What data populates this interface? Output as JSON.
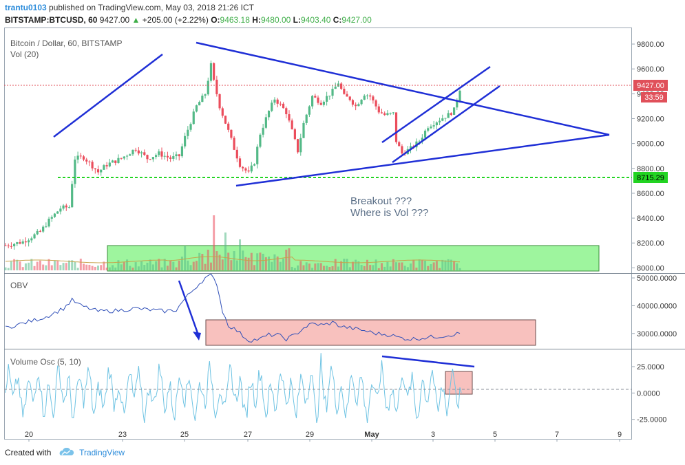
{
  "header": {
    "user": "trantu0103",
    "published": "published on TradingView.com, May 03, 2018 21:26 ICT",
    "symbol": "BITSTAMP:BTCUSD, 60",
    "price": "9427.00",
    "change": "+205.00 (+2.22%)",
    "o_label": "O:",
    "o_val": "9463.18",
    "h_label": "H:",
    "h_val": "9480.00",
    "l_label": "L:",
    "l_val": "9403.40",
    "c_label": "C:",
    "c_val": "9427.00"
  },
  "footer": {
    "created": "Created with",
    "brand": "TradingView"
  },
  "chart_data": [
    {
      "type": "candlestick",
      "title": "Bitcoin / Dollar, 60, BITSTAMP",
      "subtitle": "Vol (20)",
      "x_ticks": [
        "20",
        "23",
        "25",
        "27",
        "29",
        "May",
        "3",
        "5",
        "7",
        "9"
      ],
      "y_ticks": [
        "9800.00",
        "9600.00",
        "9400.00",
        "9200.00",
        "9000.00",
        "8800.00",
        "8600.00",
        "8400.00",
        "8200.00",
        "8000.00"
      ],
      "ylim": [
        7980,
        9850
      ],
      "last_price_label": "9427.00",
      "countdown_label": "33:59",
      "support_label": "8715.29",
      "support_level": 8715.29,
      "anchors": [
        [
          0,
          8180
        ],
        [
          6,
          8210
        ],
        [
          12,
          8290
        ],
        [
          15,
          8380
        ],
        [
          19,
          8480
        ],
        [
          22,
          8490
        ],
        [
          24,
          8880
        ],
        [
          27,
          8890
        ],
        [
          30,
          8820
        ],
        [
          32,
          8770
        ],
        [
          35,
          8830
        ],
        [
          40,
          8880
        ],
        [
          45,
          8960
        ],
        [
          49,
          8880
        ],
        [
          53,
          8920
        ],
        [
          57,
          8880
        ],
        [
          60,
          8900
        ],
        [
          62,
          9050
        ],
        [
          66,
          9300
        ],
        [
          69,
          9400
        ],
        [
          71,
          9630
        ],
        [
          72,
          9500
        ],
        [
          74,
          9300
        ],
        [
          77,
          9100
        ],
        [
          79,
          8960
        ],
        [
          81,
          8830
        ],
        [
          84,
          8760
        ],
        [
          86,
          8850
        ],
        [
          88,
          9080
        ],
        [
          91,
          9260
        ],
        [
          93,
          9360
        ],
        [
          95,
          9310
        ],
        [
          97,
          9250
        ],
        [
          99,
          9100
        ],
        [
          101,
          8940
        ],
        [
          103,
          9160
        ],
        [
          106,
          9380
        ],
        [
          109,
          9330
        ],
        [
          113,
          9420
        ],
        [
          115,
          9490
        ],
        [
          117,
          9380
        ],
        [
          119,
          9360
        ],
        [
          121,
          9300
        ],
        [
          124,
          9400
        ],
        [
          126,
          9380
        ],
        [
          129,
          9260
        ],
        [
          131,
          9230
        ],
        [
          134,
          9240
        ],
        [
          135,
          9020
        ],
        [
          137,
          8920
        ],
        [
          140,
          8960
        ],
        [
          143,
          9020
        ],
        [
          146,
          9140
        ],
        [
          149,
          9180
        ],
        [
          152,
          9220
        ],
        [
          153,
          9230
        ],
        [
          155,
          9270
        ],
        [
          157,
          9440
        ]
      ],
      "annotations": [
        "Breakout ???",
        "Where is Vol ???"
      ]
    },
    {
      "type": "line",
      "title": "OBV",
      "y_ticks": [
        "50000.0000",
        "40000.0000",
        "30000.0000"
      ],
      "ylim": [
        25000,
        51000
      ],
      "anchors": [
        [
          0,
          32000
        ],
        [
          9,
          34500
        ],
        [
          14,
          36000
        ],
        [
          20,
          39000
        ],
        [
          23,
          42000
        ],
        [
          26,
          40000
        ],
        [
          32,
          38000
        ],
        [
          38,
          38200
        ],
        [
          45,
          39000
        ],
        [
          50,
          38500
        ],
        [
          55,
          38000
        ],
        [
          59,
          38500
        ],
        [
          62,
          42500
        ],
        [
          66,
          47000
        ],
        [
          69,
          50000
        ],
        [
          71,
          50800
        ],
        [
          73,
          48000
        ],
        [
          75,
          38000
        ],
        [
          77,
          33000
        ],
        [
          80,
          31000
        ],
        [
          84,
          27500
        ],
        [
          88,
          28000
        ],
        [
          91,
          29500
        ],
        [
          94,
          29500
        ],
        [
          97,
          28000
        ],
        [
          100,
          29500
        ],
        [
          103,
          32000
        ],
        [
          106,
          33500
        ],
        [
          110,
          33000
        ],
        [
          113,
          34000
        ],
        [
          116,
          32500
        ],
        [
          119,
          32000
        ],
        [
          124,
          31000
        ],
        [
          128,
          30000
        ],
        [
          133,
          29500
        ],
        [
          136,
          28500
        ],
        [
          140,
          28000
        ],
        [
          145,
          28500
        ],
        [
          150,
          29000
        ],
        [
          157,
          30000
        ]
      ]
    },
    {
      "type": "line",
      "title": "Volume Osc (5, 10)",
      "y_ticks": [
        "25.0000",
        "0.0000",
        "-25.0000"
      ],
      "ylim": [
        -35,
        40
      ],
      "zero_line": 0
    }
  ]
}
